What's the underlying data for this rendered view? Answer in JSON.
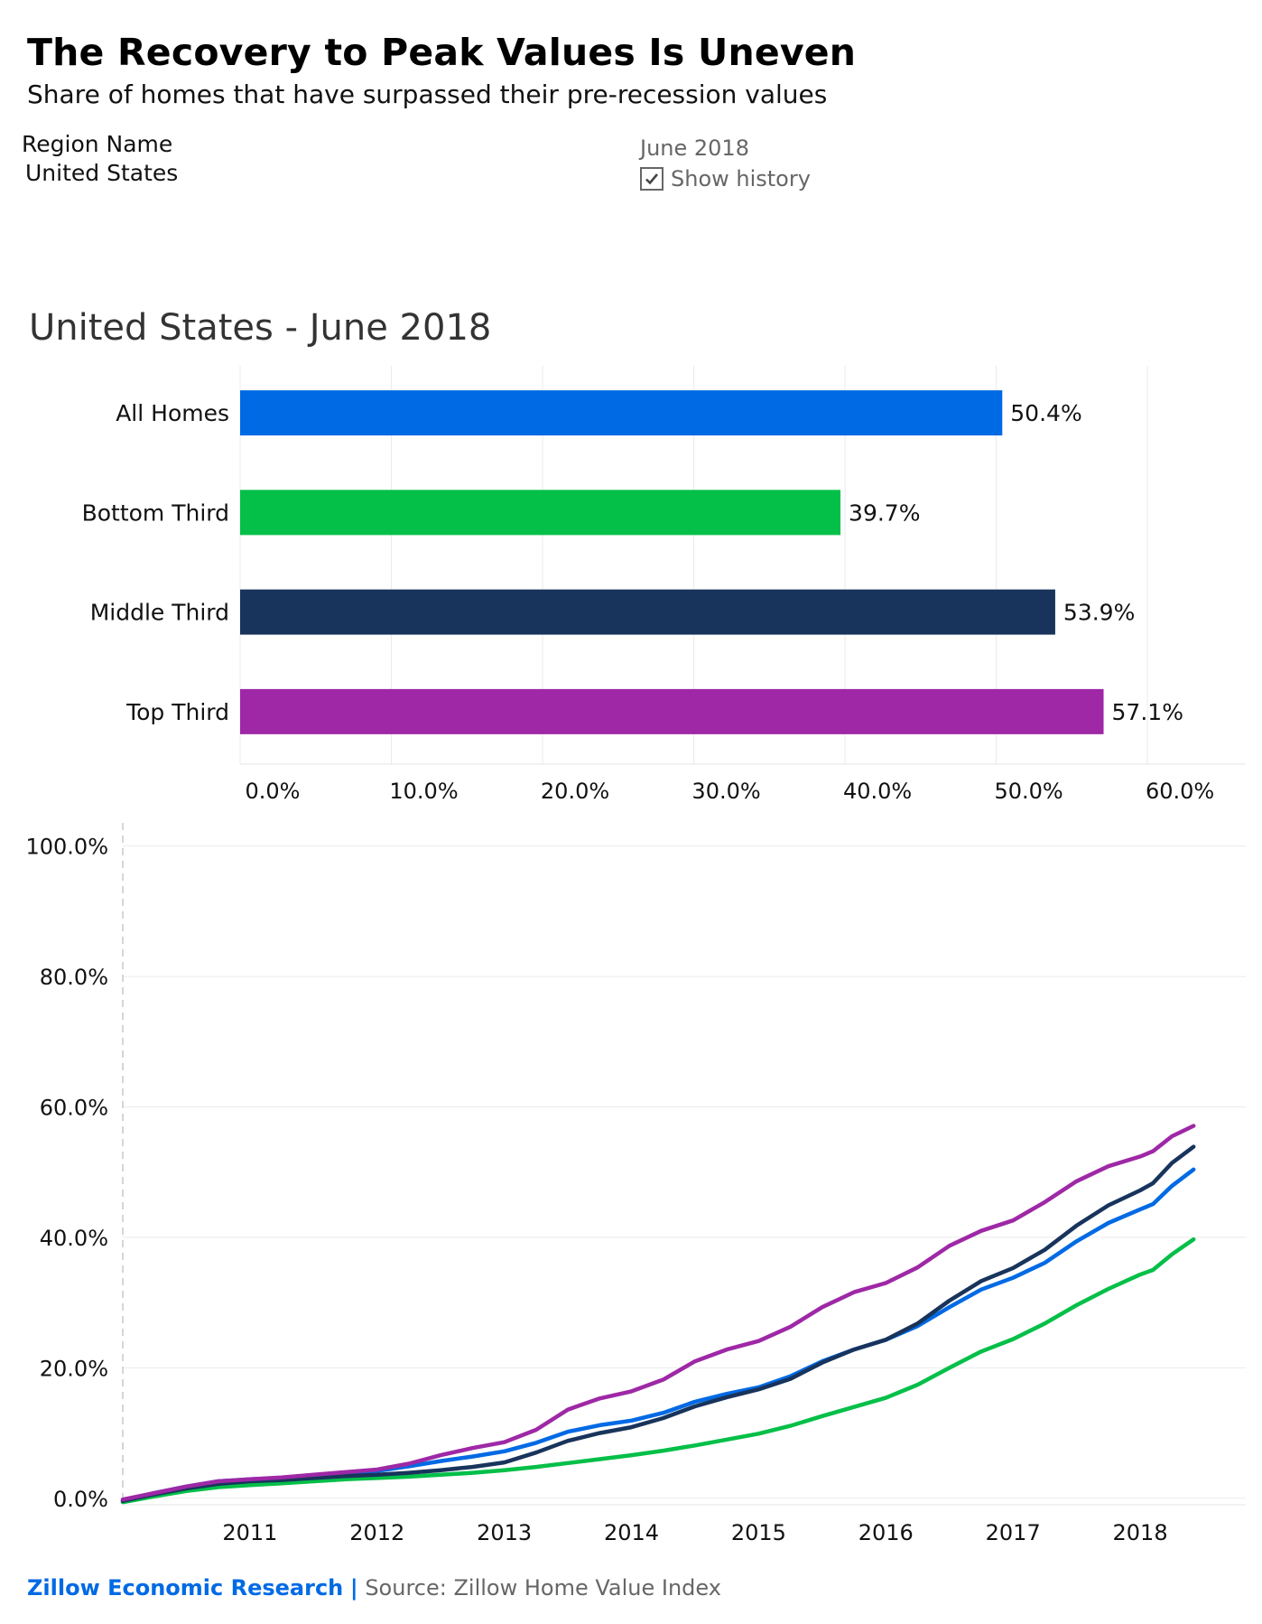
{
  "header": {
    "title": "The Recovery to Peak Values Is Uneven",
    "subtitle": "Share of homes that have surpassed their pre-recession values"
  },
  "filters": {
    "region_label": "Region Name",
    "region_value": "United States",
    "date_label": "June 2018",
    "show_history_label": "Show history",
    "show_history_checked": true
  },
  "section_title": "United States - June 2018",
  "footer": {
    "brand": "Zillow Economic Research",
    "separator": "|",
    "source": "Source: Zillow Home Value Index"
  },
  "colors": {
    "all_homes": "#006AE4",
    "bottom_third": "#04BF48",
    "middle_third": "#18345C",
    "top_third": "#9E28A6"
  },
  "chart_data": [
    {
      "type": "bar",
      "orientation": "horizontal",
      "title": "United States - June 2018",
      "categories": [
        "All Homes",
        "Bottom Third",
        "Middle Third",
        "Top Third"
      ],
      "values": [
        50.4,
        39.7,
        53.9,
        57.1
      ],
      "labels": [
        "50.4%",
        "39.7%",
        "53.9%",
        "57.1%"
      ],
      "colors": [
        "#006AE4",
        "#04BF48",
        "#18345C",
        "#9E28A6"
      ],
      "xlim": [
        0,
        66.5
      ],
      "xticks": [
        0,
        10,
        20,
        30,
        40,
        50,
        60
      ],
      "xtick_labels": [
        "0.0%",
        "10.0%",
        "20.0%",
        "30.0%",
        "40.0%",
        "50.0%",
        "60.0%"
      ],
      "grid": true
    },
    {
      "type": "line",
      "title": "",
      "xlim": [
        2010.0,
        2018.83
      ],
      "ylim": [
        -1,
        103
      ],
      "yticks": [
        0,
        20,
        40,
        60,
        80,
        100
      ],
      "ytick_labels": [
        "0.0%",
        "20.0%",
        "40.0%",
        "60.0%",
        "80.0%",
        "100.0%"
      ],
      "xticks": [
        2011,
        2012,
        2013,
        2014,
        2015,
        2016,
        2017,
        2018
      ],
      "xtick_labels": [
        "2011",
        "2012",
        "2013",
        "2014",
        "2015",
        "2016",
        "2017",
        "2018"
      ],
      "x": [
        2010.0,
        2010.25,
        2010.5,
        2010.75,
        2011.0,
        2011.25,
        2011.5,
        2011.75,
        2012.0,
        2012.25,
        2012.5,
        2012.75,
        2013.0,
        2013.25,
        2013.5,
        2013.75,
        2014.0,
        2014.25,
        2014.5,
        2014.75,
        2015.0,
        2015.25,
        2015.5,
        2015.75,
        2016.0,
        2016.25,
        2016.5,
        2016.75,
        2017.0,
        2017.25,
        2017.5,
        2017.75,
        2018.0,
        2018.1,
        2018.25,
        2018.42
      ],
      "series": [
        {
          "name": "All Homes",
          "color": "#006AE4",
          "values": [
            -0.3,
            0.8,
            1.8,
            2.6,
            2.9,
            3.1,
            3.5,
            3.9,
            4.2,
            4.9,
            5.7,
            6.4,
            7.2,
            8.5,
            10.2,
            11.2,
            11.9,
            13.1,
            14.8,
            16.0,
            17.0,
            18.7,
            21.0,
            22.8,
            24.3,
            26.4,
            29.3,
            32.0,
            33.8,
            36.1,
            39.4,
            42.2,
            44.3,
            45.1,
            47.9,
            50.4
          ]
        },
        {
          "name": "Bottom Third",
          "color": "#04BF48",
          "values": [
            -0.6,
            0.3,
            1.1,
            1.7,
            2.0,
            2.3,
            2.6,
            2.9,
            3.1,
            3.3,
            3.6,
            3.9,
            4.3,
            4.8,
            5.4,
            6.0,
            6.6,
            7.3,
            8.1,
            9.0,
            9.9,
            11.1,
            12.6,
            14.0,
            15.4,
            17.4,
            20.0,
            22.5,
            24.4,
            26.8,
            29.6,
            32.1,
            34.3,
            35.0,
            37.4,
            39.7
          ]
        },
        {
          "name": "Middle Third",
          "color": "#18345C",
          "values": [
            -0.4,
            0.6,
            1.5,
            2.2,
            2.6,
            2.8,
            3.1,
            3.4,
            3.6,
            3.9,
            4.3,
            4.8,
            5.5,
            7.0,
            8.8,
            10.0,
            10.9,
            12.3,
            14.1,
            15.5,
            16.7,
            18.3,
            20.8,
            22.8,
            24.3,
            26.8,
            30.3,
            33.3,
            35.3,
            38.1,
            41.8,
            44.9,
            47.2,
            48.3,
            51.4,
            53.9
          ]
        },
        {
          "name": "Top Third",
          "color": "#9E28A6",
          "values": [
            -0.2,
            0.8,
            1.8,
            2.6,
            2.9,
            3.2,
            3.6,
            4.0,
            4.4,
            5.3,
            6.6,
            7.7,
            8.6,
            10.5,
            13.6,
            15.3,
            16.4,
            18.2,
            21.0,
            22.8,
            24.1,
            26.3,
            29.3,
            31.6,
            33.0,
            35.4,
            38.7,
            41.0,
            42.6,
            45.4,
            48.6,
            50.9,
            52.4,
            53.2,
            55.5,
            57.1
          ]
        }
      ],
      "grid": true
    }
  ]
}
